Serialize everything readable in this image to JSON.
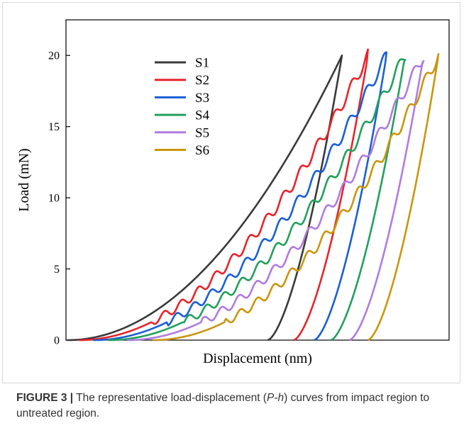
{
  "chart_data": {
    "type": "line",
    "xlabel": "Displacement (nm)",
    "ylabel": "Load (mN)",
    "x_tick_labels": false,
    "ylim": [
      0,
      22.5
    ],
    "yticks": [
      0,
      5,
      10,
      15,
      20
    ],
    "grid": false,
    "legend_position": "top-left",
    "series": [
      {
        "name": "S1",
        "color": "#3a3a3a",
        "loading_start_x": 0.0,
        "peak_x": 0.74,
        "peak_load": 20,
        "unloading_start_x": 0.54,
        "stepped": false
      },
      {
        "name": "S2",
        "color": "#e8242a",
        "loading_start_x": 0.03,
        "peak_x": 0.81,
        "peak_load": 20,
        "unloading_start_x": 0.61,
        "stepped": true
      },
      {
        "name": "S3",
        "color": "#1a5fd6",
        "loading_start_x": 0.07,
        "peak_x": 0.86,
        "peak_load": 20,
        "unloading_start_x": 0.665,
        "stepped": true
      },
      {
        "name": "S4",
        "color": "#22a05c",
        "loading_start_x": 0.11,
        "peak_x": 0.91,
        "peak_load": 20,
        "unloading_start_x": 0.71,
        "stepped": true
      },
      {
        "name": "S5",
        "color": "#b07ce0",
        "loading_start_x": 0.16,
        "peak_x": 0.96,
        "peak_load": 20,
        "unloading_start_x": 0.76,
        "stepped": true
      },
      {
        "name": "S6",
        "color": "#c9960f",
        "loading_start_x": 0.23,
        "peak_x": 1.0,
        "peak_load": 20,
        "unloading_start_x": 0.81,
        "stepped": true
      }
    ]
  },
  "caption": {
    "label": "FIGURE 3 |",
    "text_before": " The representative load-displacement (",
    "italic": "P-h",
    "text_after": ") curves from impact region to untreated region."
  }
}
